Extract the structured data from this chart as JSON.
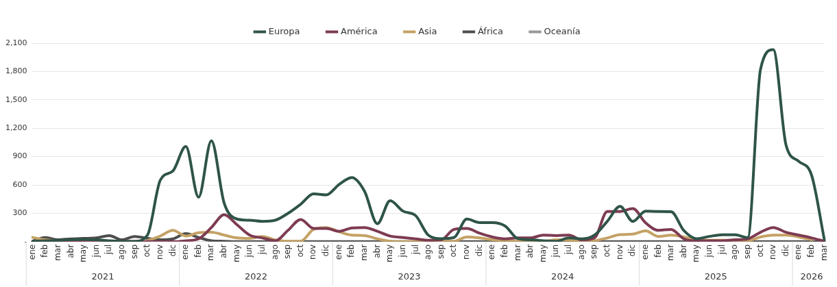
{
  "chart_data": {
    "type": "line",
    "categories": [
      "ene",
      "feb",
      "mar",
      "abr",
      "may",
      "jun",
      "jul",
      "ago",
      "sep",
      "oct",
      "nov",
      "dic",
      "ene",
      "feb",
      "mar",
      "abr",
      "may",
      "jun",
      "jul",
      "ago",
      "sep",
      "oct",
      "nov",
      "dic",
      "ene",
      "feb",
      "mar",
      "abr",
      "may",
      "jun",
      "jul",
      "ago",
      "sep",
      "oct",
      "nov",
      "dic",
      "ene",
      "feb",
      "mar",
      "abr",
      "may",
      "jun",
      "jul",
      "ago",
      "sep",
      "oct",
      "nov",
      "dic",
      "ene",
      "feb",
      "mar",
      "abr",
      "may",
      "jun",
      "jul",
      "ago",
      "sep",
      "oct",
      "nov",
      "dic",
      "ene",
      "feb",
      "mar"
    ],
    "series": [
      {
        "name": "Europa",
        "color": "#2f5449",
        "values": [
          5,
          10,
          15,
          20,
          25,
          20,
          10,
          5,
          5,
          70,
          650,
          750,
          1007,
          470,
          1068,
          410,
          240,
          227,
          215,
          227,
          300,
          397,
          507,
          495,
          605,
          678,
          532,
          190,
          434,
          324,
          275,
          68,
          32,
          44,
          239,
          202,
          202,
          166,
          32,
          20,
          10,
          5,
          40,
          30,
          70,
          215,
          373,
          215,
          324,
          320,
          317,
          117,
          32,
          56,
          73,
          73,
          44,
          1824,
          2031,
          1020,
          849,
          702,
          20
        ]
      },
      {
        "name": "América",
        "color": "#7d3b52",
        "values": [
          0,
          0,
          0,
          0,
          0,
          0,
          0,
          0,
          0,
          0,
          0,
          0,
          10,
          30,
          150,
          285,
          180,
          70,
          40,
          10,
          120,
          235,
          140,
          140,
          110,
          145,
          150,
          110,
          60,
          45,
          30,
          15,
          20,
          130,
          140,
          90,
          50,
          30,
          40,
          40,
          70,
          65,
          70,
          20,
          40,
          320,
          320,
          350,
          200,
          120,
          130,
          30,
          10,
          10,
          10,
          20,
          30,
          100,
          150,
          100,
          70,
          40,
          5
        ]
      },
      {
        "name": "Asia",
        "color": "#c4a265",
        "values": [
          45,
          20,
          10,
          5,
          5,
          null,
          null,
          null,
          null,
          10,
          60,
          120,
          60,
          95,
          100,
          70,
          40,
          35,
          55,
          20,
          5,
          5,
          130,
          150,
          105,
          70,
          65,
          30,
          5,
          0,
          0,
          0,
          5,
          5,
          50,
          40,
          20,
          10,
          5,
          5,
          5,
          20,
          15,
          0,
          10,
          40,
          75,
          80,
          115,
          55,
          70,
          50,
          20,
          15,
          15,
          15,
          10,
          50,
          70,
          70,
          50,
          20,
          null
        ]
      },
      {
        "name": "África",
        "color": "#4d4d4d",
        "values": [
          5,
          45,
          20,
          30,
          35,
          40,
          65,
          20,
          55,
          35,
          20,
          30,
          85,
          45,
          10,
          5,
          0,
          0,
          0,
          0,
          0,
          0,
          0,
          0,
          0,
          0,
          0,
          0,
          0,
          0,
          0,
          0,
          0,
          0,
          0,
          0,
          0,
          0,
          0,
          0,
          0,
          0,
          0,
          0,
          0,
          0,
          0,
          0,
          0,
          0,
          0,
          0,
          0,
          0,
          0,
          0,
          0,
          0,
          0,
          0,
          0,
          0,
          0
        ]
      },
      {
        "name": "Oceanía",
        "color": "#999999",
        "values": [
          null,
          null,
          null,
          null,
          null,
          null,
          null,
          null,
          null,
          null,
          null,
          null,
          null,
          null,
          null,
          null,
          null,
          null,
          null,
          null,
          null,
          null,
          null,
          null,
          null,
          null,
          null,
          null,
          null,
          null,
          null,
          null,
          null,
          null,
          null,
          null,
          null,
          null,
          null,
          null,
          null,
          null,
          null,
          null,
          null,
          null,
          null,
          null,
          null,
          null,
          null,
          null,
          null,
          null,
          null,
          null,
          null,
          null,
          null,
          null,
          null,
          null,
          null
        ]
      }
    ],
    "ylim": [
      0,
      2100
    ],
    "yticks": [
      {
        "value": 0,
        "label": "-"
      },
      {
        "value": 300,
        "label": "300"
      },
      {
        "value": 600,
        "label": "600"
      },
      {
        "value": 900,
        "label": "900"
      },
      {
        "value": 1200,
        "label": "1,200"
      },
      {
        "value": 1500,
        "label": "1,500"
      },
      {
        "value": 1800,
        "label": "1,800"
      },
      {
        "value": 2100,
        "label": "2,100"
      }
    ],
    "grid": "y",
    "legend": "top",
    "marker": "none",
    "annotations": [
      "2021",
      "2022",
      "2023",
      "2024",
      "2025",
      "2026"
    ]
  }
}
